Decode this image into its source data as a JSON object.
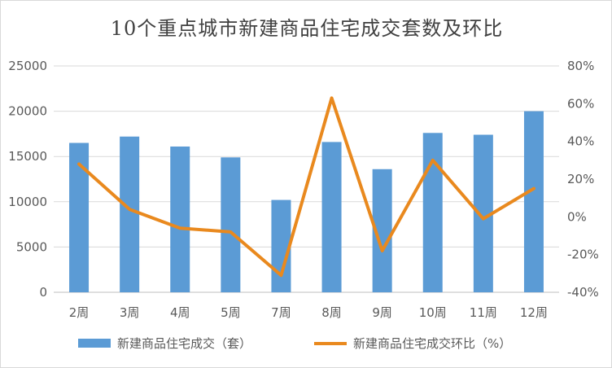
{
  "chart_data": {
    "type": "bar",
    "title": "10个重点城市新建商品住宅成交套数及环比",
    "categories": [
      "2周",
      "3周",
      "4周",
      "5周",
      "7周",
      "8周",
      "9周",
      "10周",
      "11周",
      "12周"
    ],
    "series": [
      {
        "name": "新建商品住宅成交（套）",
        "type": "bar",
        "axis": "left",
        "color": "#5b9bd5",
        "values": [
          16500,
          17200,
          16100,
          14900,
          10200,
          16600,
          13600,
          17600,
          17400,
          20000
        ]
      },
      {
        "name": "新建商品住宅成交环比（%）",
        "type": "line",
        "axis": "right",
        "color": "#e9891e",
        "values": [
          28,
          4,
          -6,
          -8,
          -31,
          63,
          -18,
          30,
          -1,
          15
        ]
      }
    ],
    "y_left": {
      "range": [
        0,
        25000
      ],
      "ticks": [
        "0",
        "5000",
        "10000",
        "15000",
        "20000",
        "25000"
      ]
    },
    "y_right": {
      "range": [
        -40,
        80
      ],
      "ticks": [
        "-40%",
        "-20%",
        "0%",
        "20%",
        "40%",
        "60%",
        "80%"
      ]
    },
    "grid": true,
    "legend_position": "bottom"
  }
}
